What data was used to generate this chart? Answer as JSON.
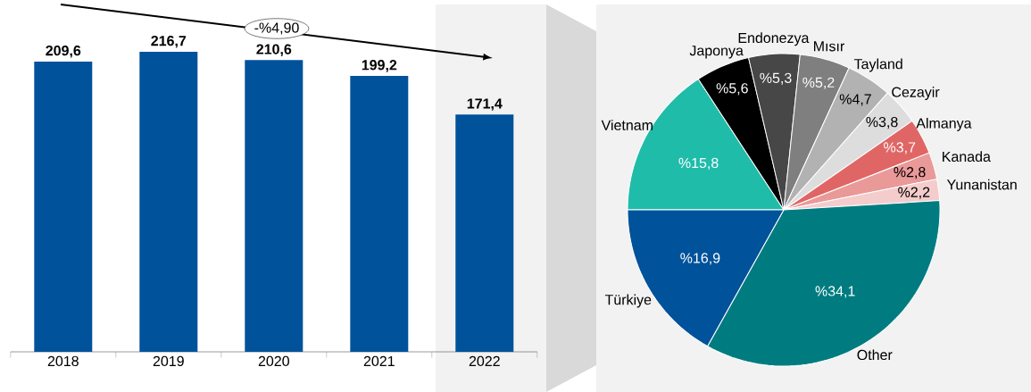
{
  "chart_data": [
    {
      "type": "bar",
      "categories": [
        "2018",
        "2019",
        "2020",
        "2021",
        "2022"
      ],
      "values": [
        209.6,
        216.7,
        210.6,
        199.2,
        171.4
      ],
      "value_labels": [
        "209,6",
        "216,7",
        "210,6",
        "199,2",
        "171,4"
      ],
      "color": "#00529b",
      "annotations": [
        "-%4,90"
      ]
    },
    {
      "type": "pie",
      "categories": [
        "Vietnam",
        "Japonya",
        "Endonezya",
        "Mısır",
        "Tayland",
        "Cezayir",
        "Almanya",
        "Kanada",
        "Yunanistan",
        "Other",
        "Türkiye"
      ],
      "values": [
        15.8,
        5.6,
        5.3,
        5.2,
        4.7,
        3.8,
        3.7,
        2.8,
        2.2,
        34.1,
        16.9
      ],
      "value_labels": [
        "%15,8",
        "%5,6",
        "%5,3",
        "%5,2",
        "%4,7",
        "%3,8",
        "%3,7",
        "%2,8",
        "%2,2",
        "%34,1",
        "%16,9"
      ],
      "colors": [
        "#20bcaa",
        "#000000",
        "#474747",
        "#7f7f7f",
        "#b2b2b2",
        "#dddddd",
        "#e06666",
        "#ea9999",
        "#f4cccc",
        "#007c80",
        "#00529b"
      ]
    }
  ]
}
